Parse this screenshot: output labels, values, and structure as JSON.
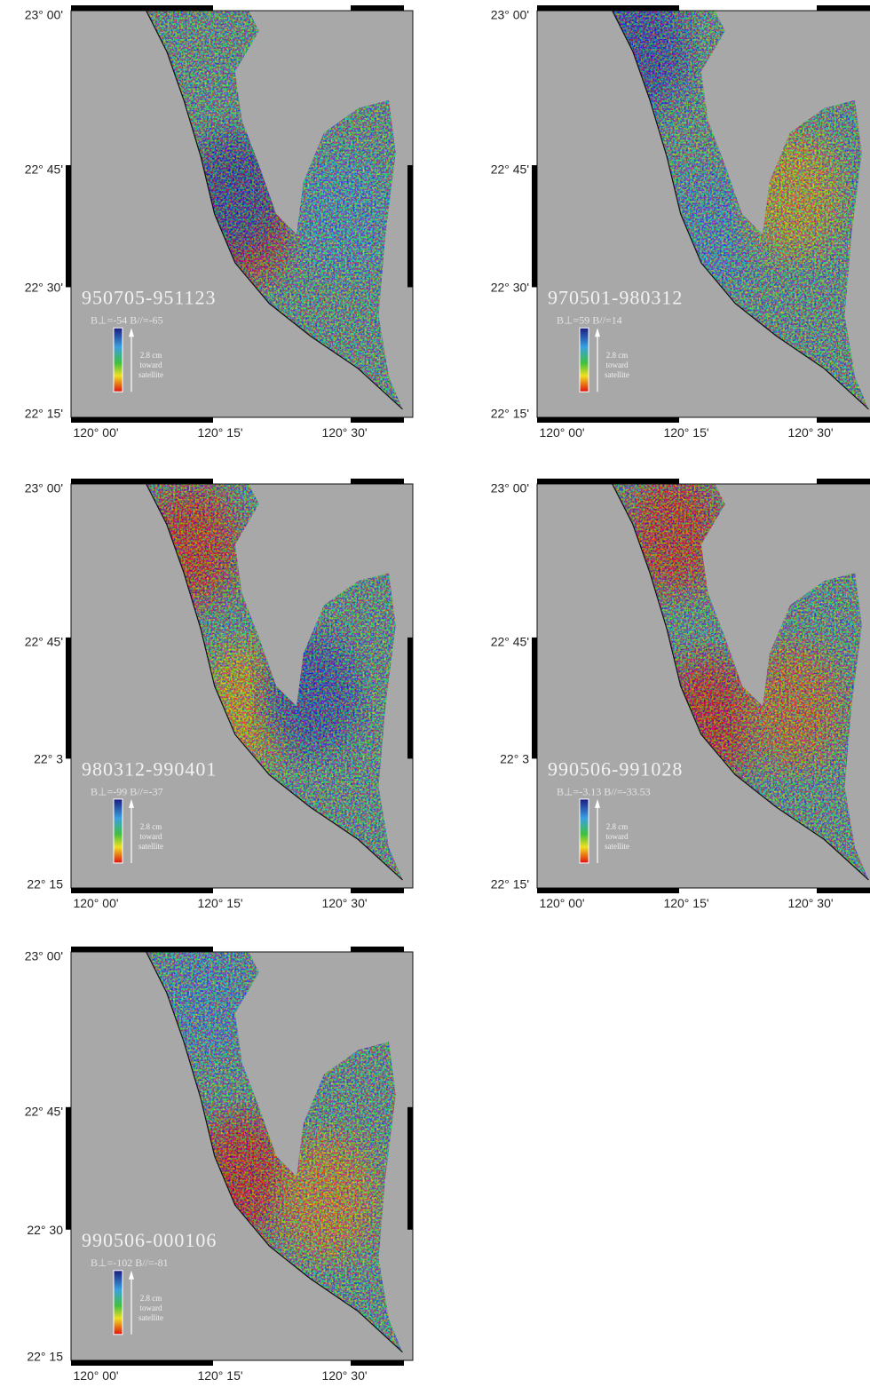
{
  "panels": [
    {
      "title": "950705-951123",
      "baseline": "B⊥=-54   B//=-65",
      "y_labels": [
        "23° 00'",
        "22° 45'",
        "22° 30'",
        "22° 15'"
      ],
      "x_labels": [
        "120° 00'",
        "120° 15'",
        "120° 30'"
      ],
      "legend": [
        "2.8 cm",
        "toward",
        "satellite"
      ]
    },
    {
      "title": "970501-980312",
      "baseline": "B⊥=59   B//=14",
      "y_labels": [
        "23° 00'",
        "22° 45'",
        "22° 30'",
        "22° 15'"
      ],
      "x_labels": [
        "120° 00'",
        "120° 15'",
        "120° 30'"
      ],
      "legend": [
        "2.8 cm",
        "toward",
        "satellite"
      ]
    },
    {
      "title": "980312-990401",
      "baseline": "B⊥=-99   B//=-37",
      "y_labels": [
        "23° 00'",
        "22° 45'",
        "22° 3",
        "22° 15"
      ],
      "x_labels": [
        "120° 00'",
        "120° 15'",
        "120° 30'"
      ],
      "legend": [
        "2.8 cm",
        "toward",
        "satellite"
      ]
    },
    {
      "title": "990506-991028",
      "baseline": "B⊥=-3.13  B//=-33.53",
      "y_labels": [
        "23° 00'",
        "22° 45'",
        "22° 3",
        "22° 15'"
      ],
      "x_labels": [
        "120° 00'",
        "120° 15'",
        "120° 30'"
      ],
      "legend": [
        "2.8 cm",
        "toward",
        "satellite"
      ]
    },
    {
      "title": "990506-000106",
      "baseline": "B⊥=-102   B//=-81",
      "y_labels": [
        "23° 00'",
        "22° 45'",
        "22° 30",
        "22° 15"
      ],
      "x_labels": [
        "120° 00'",
        "120° 15'",
        "120° 30'"
      ],
      "legend": [
        "2.8 cm",
        "toward",
        "satellite"
      ]
    }
  ]
}
